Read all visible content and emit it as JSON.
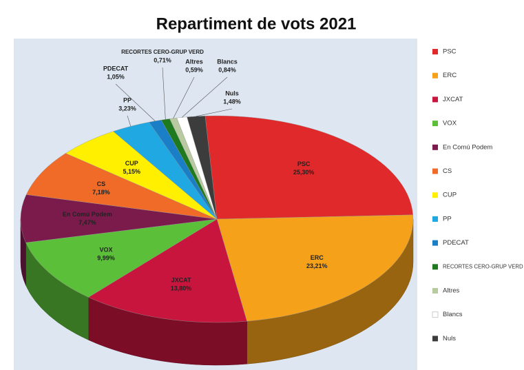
{
  "chart_data": {
    "type": "pie3d",
    "title": "Repartiment de vots 2021",
    "categories": [
      "PSC",
      "ERC",
      "JXCAT",
      "VOX",
      "En Comú Podem",
      "CS",
      "CUP",
      "PP",
      "PDECAT",
      "RECORTES CERO-GRUP VERD",
      "Altres",
      "Blancs",
      "Nuls"
    ],
    "values": [
      25.3,
      23.21,
      13.8,
      9.99,
      7.47,
      7.18,
      5.15,
      3.23,
      1.05,
      0.71,
      0.59,
      0.84,
      1.48
    ],
    "value_labels": [
      "25,30%",
      "23,21%",
      "13,80%",
      "9,99%",
      "7,47%",
      "7,18%",
      "5,15%",
      "3,23%",
      "1,05%",
      "0,71%",
      "0,59%",
      "0,84%",
      "1,48%"
    ],
    "colors": [
      "#e0292a",
      "#f5a21a",
      "#c8153d",
      "#5cbf3a",
      "#7a1b4c",
      "#f06b28",
      "#fff000",
      "#1fa8e2",
      "#1a7fc6",
      "#1f7a1f",
      "#b9c9a0",
      "#ffffff",
      "#3c3c3c"
    ],
    "legend": "right"
  }
}
